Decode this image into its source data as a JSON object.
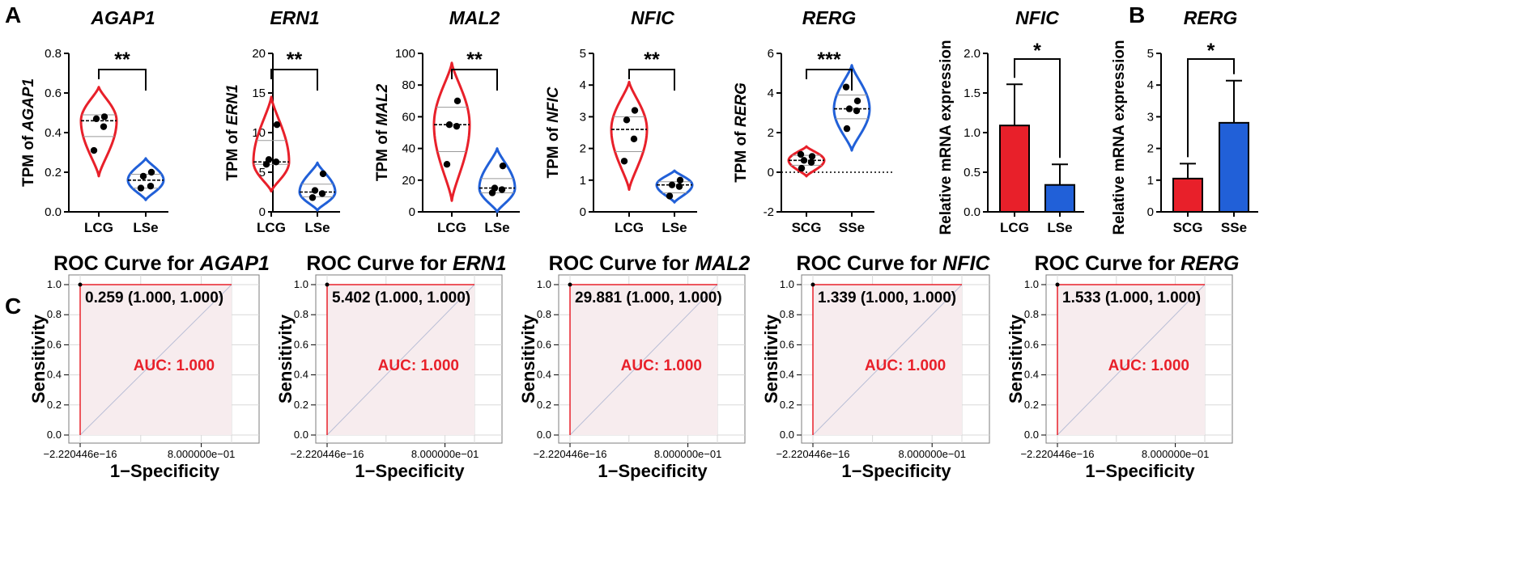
{
  "panels": {
    "a": "A",
    "b": "B",
    "c": "C"
  },
  "colors": {
    "red": "#e8202a",
    "blue": "#2160d8",
    "roc_fill": "#f7ecee",
    "diag": "#b9bed6",
    "grid": "#d8d8d8"
  },
  "chart_data": [
    {
      "id": "violin-agap1",
      "type": "violin",
      "title": "AGAP1",
      "ylabel_prefix": "TPM of ",
      "ylabel_gene": "AGAP1",
      "ylim": [
        0,
        0.8
      ],
      "yticks": [
        "0.0",
        "0.2",
        "0.4",
        "0.6",
        "0.8"
      ],
      "categories": [
        "LCG",
        "LSe"
      ],
      "groups": [
        {
          "name": "LCG",
          "color": "red",
          "points": [
            0.31,
            0.43,
            0.47,
            0.48
          ],
          "median": 0.46,
          "q1": 0.38,
          "q3": 0.49,
          "min": 0.18,
          "max": 0.63
        },
        {
          "name": "LSe",
          "color": "blue",
          "points": [
            0.12,
            0.13,
            0.18,
            0.2
          ],
          "median": 0.16,
          "q1": 0.12,
          "q3": 0.19,
          "min": 0.06,
          "max": 0.27
        }
      ],
      "significance": "**"
    },
    {
      "id": "violin-ern1",
      "type": "violin",
      "title": "ERN1",
      "ylabel_prefix": "TPM of ",
      "ylabel_gene": "ERN1",
      "ylim": [
        0,
        20
      ],
      "yticks": [
        "0",
        "5",
        "10",
        "15",
        "20"
      ],
      "categories": [
        "LCG",
        "LSe"
      ],
      "groups": [
        {
          "name": "LCG",
          "color": "red",
          "points": [
            6.0,
            6.3,
            6.6,
            11.0
          ],
          "median": 6.3,
          "q1": 6.0,
          "q3": 9.0,
          "min": 2.6,
          "max": 14.5
        },
        {
          "name": "LSe",
          "color": "blue",
          "points": [
            1.8,
            2.3,
            2.7,
            4.8
          ],
          "median": 2.5,
          "q1": 1.9,
          "q3": 3.5,
          "min": 0.2,
          "max": 6.2
        }
      ],
      "significance": "**"
    },
    {
      "id": "violin-mal2",
      "type": "violin",
      "title": "MAL2",
      "ylabel_prefix": "TPM of ",
      "ylabel_gene": "MAL2",
      "ylim": [
        0,
        100
      ],
      "yticks": [
        "0",
        "20",
        "40",
        "60",
        "80",
        "100"
      ],
      "categories": [
        "LCG",
        "LSe"
      ],
      "groups": [
        {
          "name": "LCG",
          "color": "red",
          "points": [
            30,
            54,
            55,
            70
          ],
          "median": 55,
          "q1": 38,
          "q3": 66,
          "min": 7,
          "max": 94
        },
        {
          "name": "LSe",
          "color": "blue",
          "points": [
            12,
            14,
            15,
            29
          ],
          "median": 15,
          "q1": 12,
          "q3": 21,
          "min": 0,
          "max": 40
        }
      ],
      "significance": "**"
    },
    {
      "id": "violin-nfic",
      "type": "violin",
      "title": "NFIC",
      "ylabel_prefix": "TPM of ",
      "ylabel_gene": "NFIC",
      "ylim": [
        0,
        5
      ],
      "yticks": [
        "0",
        "1",
        "2",
        "3",
        "4",
        "5"
      ],
      "categories": [
        "LCG",
        "LSe"
      ],
      "groups": [
        {
          "name": "LCG",
          "color": "red",
          "points": [
            1.6,
            2.3,
            2.9,
            3.2
          ],
          "median": 2.6,
          "q1": 1.9,
          "q3": 3.0,
          "min": 0.7,
          "max": 4.1
        },
        {
          "name": "LSe",
          "color": "blue",
          "points": [
            0.5,
            0.8,
            0.85,
            1.0
          ],
          "median": 0.85,
          "q1": 0.6,
          "q3": 0.95,
          "min": 0.3,
          "max": 1.3
        }
      ],
      "significance": "**"
    },
    {
      "id": "violin-rerg",
      "type": "violin",
      "title": "RERG",
      "ylabel_prefix": "TPM of ",
      "ylabel_gene": "RERG",
      "ylim": [
        -2,
        6
      ],
      "yticks": [
        "-2",
        "0",
        "2",
        "4",
        "6"
      ],
      "categories": [
        "SCG",
        "SSe"
      ],
      "zero_line": true,
      "groups": [
        {
          "name": "SCG",
          "color": "red",
          "points": [
            0.2,
            0.5,
            0.6,
            0.8,
            0.9
          ],
          "median": 0.6,
          "q1": 0.35,
          "q3": 0.85,
          "min": -0.2,
          "max": 1.3
        },
        {
          "name": "SSe",
          "color": "blue",
          "points": [
            2.2,
            3.1,
            3.2,
            3.6,
            4.3
          ],
          "median": 3.2,
          "q1": 2.7,
          "q3": 3.9,
          "min": 1.1,
          "max": 5.4
        }
      ],
      "significance": "***"
    },
    {
      "id": "bar-nfic",
      "type": "bar",
      "title": "NFIC",
      "ylabel": "Relative mRNA expression",
      "ylim": [
        0,
        2.0
      ],
      "yticks": [
        "0.0",
        "0.5",
        "1.0",
        "1.5",
        "2.0"
      ],
      "categories": [
        "LCG",
        "LSe"
      ],
      "values": [
        1.09,
        0.34
      ],
      "errors": [
        0.52,
        0.26
      ],
      "bar_colors": [
        "red",
        "blue"
      ],
      "significance": "*"
    },
    {
      "id": "bar-rerg",
      "type": "bar",
      "title": "RERG",
      "ylabel": "Relative mRNA expression",
      "ylim": [
        0,
        5
      ],
      "yticks": [
        "0",
        "1",
        "2",
        "3",
        "4",
        "5"
      ],
      "categories": [
        "SCG",
        "SSe"
      ],
      "values": [
        1.05,
        2.81
      ],
      "errors": [
        0.47,
        1.33
      ],
      "bar_colors": [
        "red",
        "blue"
      ],
      "significance": "*"
    },
    {
      "id": "roc-agap1",
      "type": "roc",
      "title_prefix": "ROC Curve for ",
      "gene": "AGAP1",
      "annotation": "0.259 (1.000, 1.000)",
      "auc_label": "AUC: 1.000",
      "auc": 1.0,
      "fpr": [
        0,
        0,
        1
      ],
      "tpr": [
        0,
        1,
        1
      ],
      "xlabel": "1−Specificity",
      "ylabel": "Sensitivity",
      "xticks": [
        "−2.220446e−16",
        "8.000000e−01"
      ],
      "yticks": [
        "0.0",
        "0.2",
        "0.4",
        "0.6",
        "0.8",
        "1.0"
      ]
    },
    {
      "id": "roc-ern1",
      "type": "roc",
      "title_prefix": "ROC Curve for ",
      "gene": "ERN1",
      "annotation": "5.402 (1.000, 1.000)",
      "auc_label": "AUC: 1.000",
      "auc": 1.0,
      "fpr": [
        0,
        0,
        1
      ],
      "tpr": [
        0,
        1,
        1
      ],
      "xlabel": "1−Specificity",
      "ylabel": "Sensitivity",
      "xticks": [
        "−2.220446e−16",
        "8.000000e−01"
      ],
      "yticks": [
        "0.0",
        "0.2",
        "0.4",
        "0.6",
        "0.8",
        "1.0"
      ]
    },
    {
      "id": "roc-mal2",
      "type": "roc",
      "title_prefix": "ROC Curve for ",
      "gene": "MAL2",
      "annotation": "29.881 (1.000, 1.000)",
      "auc_label": "AUC: 1.000",
      "auc": 1.0,
      "fpr": [
        0,
        0,
        1
      ],
      "tpr": [
        0,
        1,
        1
      ],
      "xlabel": "1−Specificity",
      "ylabel": "Sensitivity",
      "xticks": [
        "−2.220446e−16",
        "8.000000e−01"
      ],
      "yticks": [
        "0.0",
        "0.2",
        "0.4",
        "0.6",
        "0.8",
        "1.0"
      ]
    },
    {
      "id": "roc-nfic",
      "type": "roc",
      "title_prefix": "ROC Curve for ",
      "gene": "NFIC",
      "annotation": "1.339 (1.000, 1.000)",
      "auc_label": "AUC: 1.000",
      "auc": 1.0,
      "fpr": [
        0,
        0,
        1
      ],
      "tpr": [
        0,
        1,
        1
      ],
      "xlabel": "1−Specificity",
      "ylabel": "Sensitivity",
      "xticks": [
        "−2.220446e−16",
        "8.000000e−01"
      ],
      "yticks": [
        "0.0",
        "0.2",
        "0.4",
        "0.6",
        "0.8",
        "1.0"
      ]
    },
    {
      "id": "roc-rerg",
      "type": "roc",
      "title_prefix": "ROC Curve for ",
      "gene": "RERG",
      "annotation": "1.533 (1.000, 1.000)",
      "auc_label": "AUC: 1.000",
      "auc": 1.0,
      "fpr": [
        0,
        0,
        1
      ],
      "tpr": [
        0,
        1,
        1
      ],
      "xlabel": "1−Specificity",
      "ylabel": "Sensitivity",
      "xticks": [
        "−2.220446e−16",
        "8.000000e−01"
      ],
      "yticks": [
        "0.0",
        "0.2",
        "0.4",
        "0.6",
        "0.8",
        "1.0"
      ]
    }
  ]
}
